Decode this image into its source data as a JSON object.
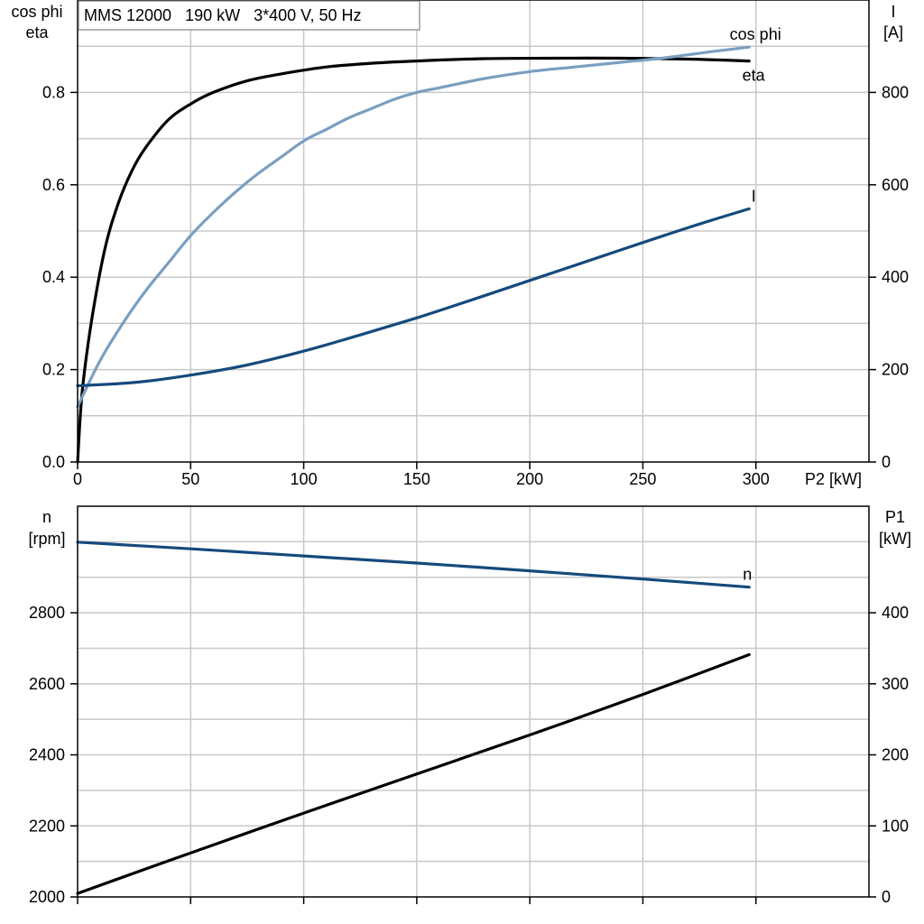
{
  "colors": {
    "eta": "#000000",
    "cos_phi": "#7a9fc0",
    "current": "#154a7c",
    "speed": "#154a7c",
    "p1": "#000000",
    "grid": "#c8c8c8"
  },
  "chart_data": [
    {
      "type": "line",
      "title": "MMS 12000   190 kW   3*400 V, 50 Hz",
      "xlabel": "P2 [kW]",
      "ylabel_left": [
        "cos phi",
        "eta"
      ],
      "ylabel_right": [
        "I",
        "[A]"
      ],
      "xlim": [
        0,
        350
      ],
      "ylim_left": [
        0,
        1.0
      ],
      "ylim_right": [
        0,
        1000
      ],
      "grid": true,
      "x_ticks": [
        "0",
        "50",
        "100",
        "150",
        "200",
        "250",
        "300"
      ],
      "y_ticks_left": [
        "0.0",
        "0.2",
        "0.4",
        "0.6",
        "0.8"
      ],
      "y_ticks_right": [
        "0",
        "200",
        "400",
        "600",
        "800"
      ],
      "series": [
        {
          "name": "eta",
          "axis": "left",
          "x": [
            0,
            2,
            6,
            12,
            18,
            24,
            30,
            40,
            50,
            60,
            75,
            90,
            110,
            130,
            150,
            180,
            210,
            240,
            270,
            297
          ],
          "y": [
            0.0,
            0.15,
            0.3,
            0.46,
            0.56,
            0.63,
            0.68,
            0.74,
            0.775,
            0.8,
            0.825,
            0.84,
            0.855,
            0.863,
            0.868,
            0.873,
            0.874,
            0.874,
            0.872,
            0.868
          ]
        },
        {
          "name": "cos phi",
          "axis": "left",
          "x": [
            0,
            10,
            20,
            30,
            40,
            50,
            60,
            70,
            80,
            90,
            100,
            110,
            120,
            130,
            140,
            150,
            160,
            180,
            200,
            220,
            240,
            260,
            280,
            297
          ],
          "y": [
            0.12,
            0.22,
            0.3,
            0.37,
            0.43,
            0.49,
            0.54,
            0.585,
            0.625,
            0.66,
            0.695,
            0.72,
            0.745,
            0.765,
            0.785,
            0.8,
            0.81,
            0.83,
            0.845,
            0.855,
            0.865,
            0.875,
            0.888,
            0.898
          ]
        },
        {
          "name": "I",
          "axis": "right",
          "x": [
            0,
            25,
            50,
            75,
            100,
            125,
            150,
            175,
            200,
            225,
            250,
            275,
            297
          ],
          "y": [
            165,
            172,
            188,
            210,
            240,
            275,
            312,
            352,
            393,
            434,
            475,
            515,
            548
          ]
        }
      ]
    },
    {
      "type": "line",
      "xlim": [
        0,
        350
      ],
      "ylabel_left": [
        "n",
        "[rpm]"
      ],
      "ylabel_right": [
        "P1",
        "[kW]"
      ],
      "ylim_left": [
        2000,
        3100
      ],
      "ylim_right": [
        0,
        550
      ],
      "grid": true,
      "y_ticks_left": [
        "2000",
        "2200",
        "2400",
        "2600",
        "2800"
      ],
      "y_ticks_right": [
        "0",
        "100",
        "200",
        "300",
        "400"
      ],
      "series": [
        {
          "name": "n",
          "axis": "left",
          "x": [
            0,
            50,
            100,
            150,
            200,
            250,
            297
          ],
          "y": [
            2999,
            2980,
            2960,
            2940,
            2918,
            2895,
            2872
          ]
        },
        {
          "axis": "right",
          "x": [
            0,
            50,
            100,
            150,
            200,
            250,
            297
          ],
          "y": [
            5,
            62,
            118,
            173,
            228,
            285,
            341
          ]
        }
      ]
    }
  ]
}
